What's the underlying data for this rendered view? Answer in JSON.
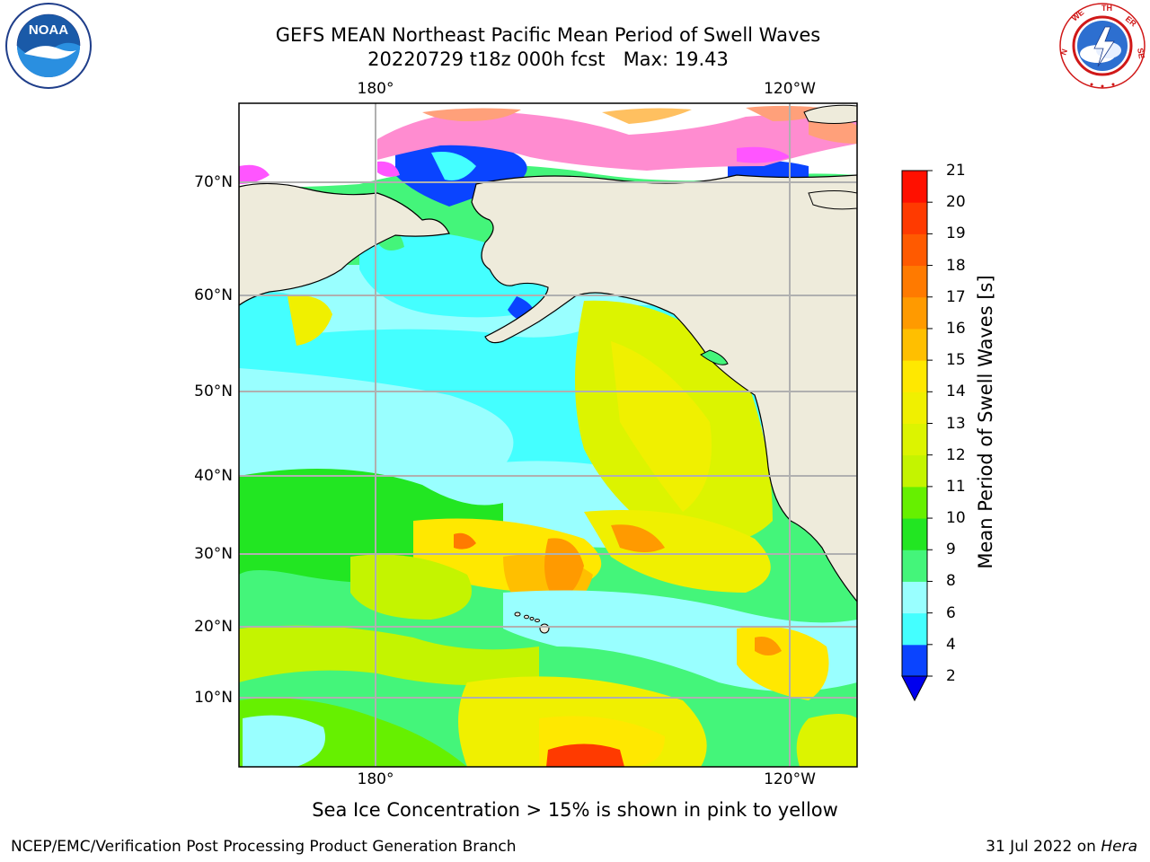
{
  "title": {
    "line1": "GEFS MEAN Northeast Pacific Mean Period of Swell Waves",
    "line2": "20220729 t18z 000h fcst   Max: 19.43"
  },
  "map": {
    "lon_labels": [
      "180°",
      "120°W"
    ],
    "lat_labels": [
      "70°N",
      "60°N",
      "50°N",
      "40°N",
      "30°N",
      "20°N",
      "10°N"
    ],
    "grid": true,
    "land_color": "#eeebdb",
    "sea_ice_colors": [
      "#ff55ff",
      "#ff8cd0",
      "#ffa07a",
      "#ffc060"
    ]
  },
  "colorbar": {
    "label": "Mean Period of Swell Waves [s]",
    "ticks": [
      "2",
      "4",
      "6",
      "8",
      "9",
      "10",
      "11",
      "12",
      "13",
      "14",
      "15",
      "16",
      "17",
      "18",
      "19",
      "20",
      "21"
    ],
    "colors": [
      "#0a44ff",
      "#00e8ff",
      "#44ffff",
      "#99ffff",
      "#44f57a",
      "#22e622",
      "#66f000",
      "#c4f400",
      "#dcf400",
      "#f0f000",
      "#ffe800",
      "#ffbf00",
      "#ff9a00",
      "#ff7a00",
      "#ff5a00",
      "#ff3a00",
      "#ff1000"
    ],
    "extend_min_color": "#0000ee"
  },
  "note": "Sea Ice Concentration > 15% is shown in pink to yellow",
  "credit_left": "NCEP/EMC/Verification Post Processing Product Generation Branch",
  "credit_right_date": "31 Jul 2022 on ",
  "credit_right_host": "Hera",
  "logos": {
    "noaa_text": "NOAA",
    "noaa_ring_text": "NATIONAL OCEANIC AND ATMOSPHERIC ADMINISTRATION · U.S. DEPARTMENT OF COMMERCE",
    "nws_ring_text": "NATIONAL WEATHER SERVICE"
  }
}
